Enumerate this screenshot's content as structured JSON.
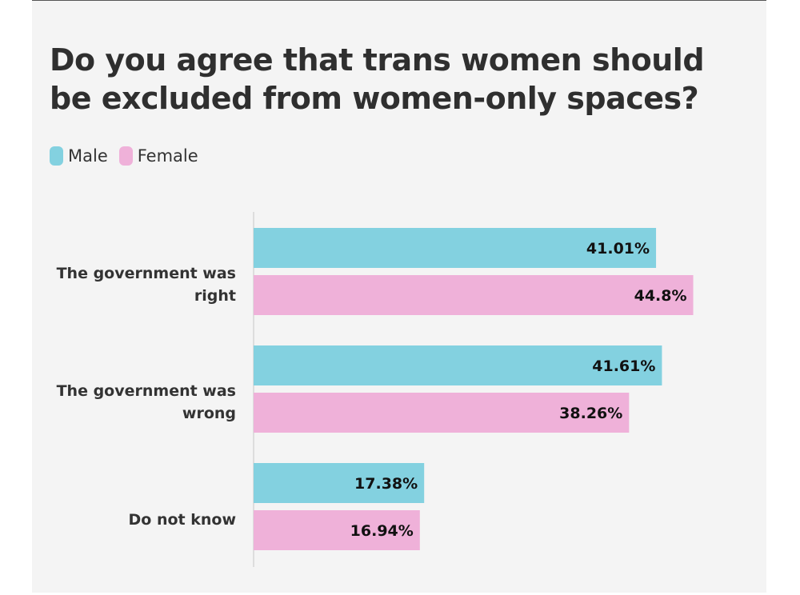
{
  "chart_data": {
    "type": "bar",
    "orientation": "horizontal",
    "title": "Do you agree that trans women should be excluded from women-only spaces?",
    "categories": [
      [
        "The government was",
        "right"
      ],
      [
        "The government was",
        "wrong"
      ],
      [
        "Do not know"
      ]
    ],
    "series": [
      {
        "name": "Male",
        "color": "#83d1e0",
        "values": [
          41.01,
          41.61,
          17.38
        ],
        "labels": [
          "41.01%",
          "41.61%",
          "17.38%"
        ]
      },
      {
        "name": "Female",
        "color": "#efb1d9",
        "values": [
          44.8,
          38.26,
          16.94
        ],
        "labels": [
          "44.8%",
          "38.26%",
          "16.94%"
        ]
      }
    ],
    "xlim": [
      0,
      45
    ],
    "grid": false,
    "legend_position": "top-left"
  }
}
